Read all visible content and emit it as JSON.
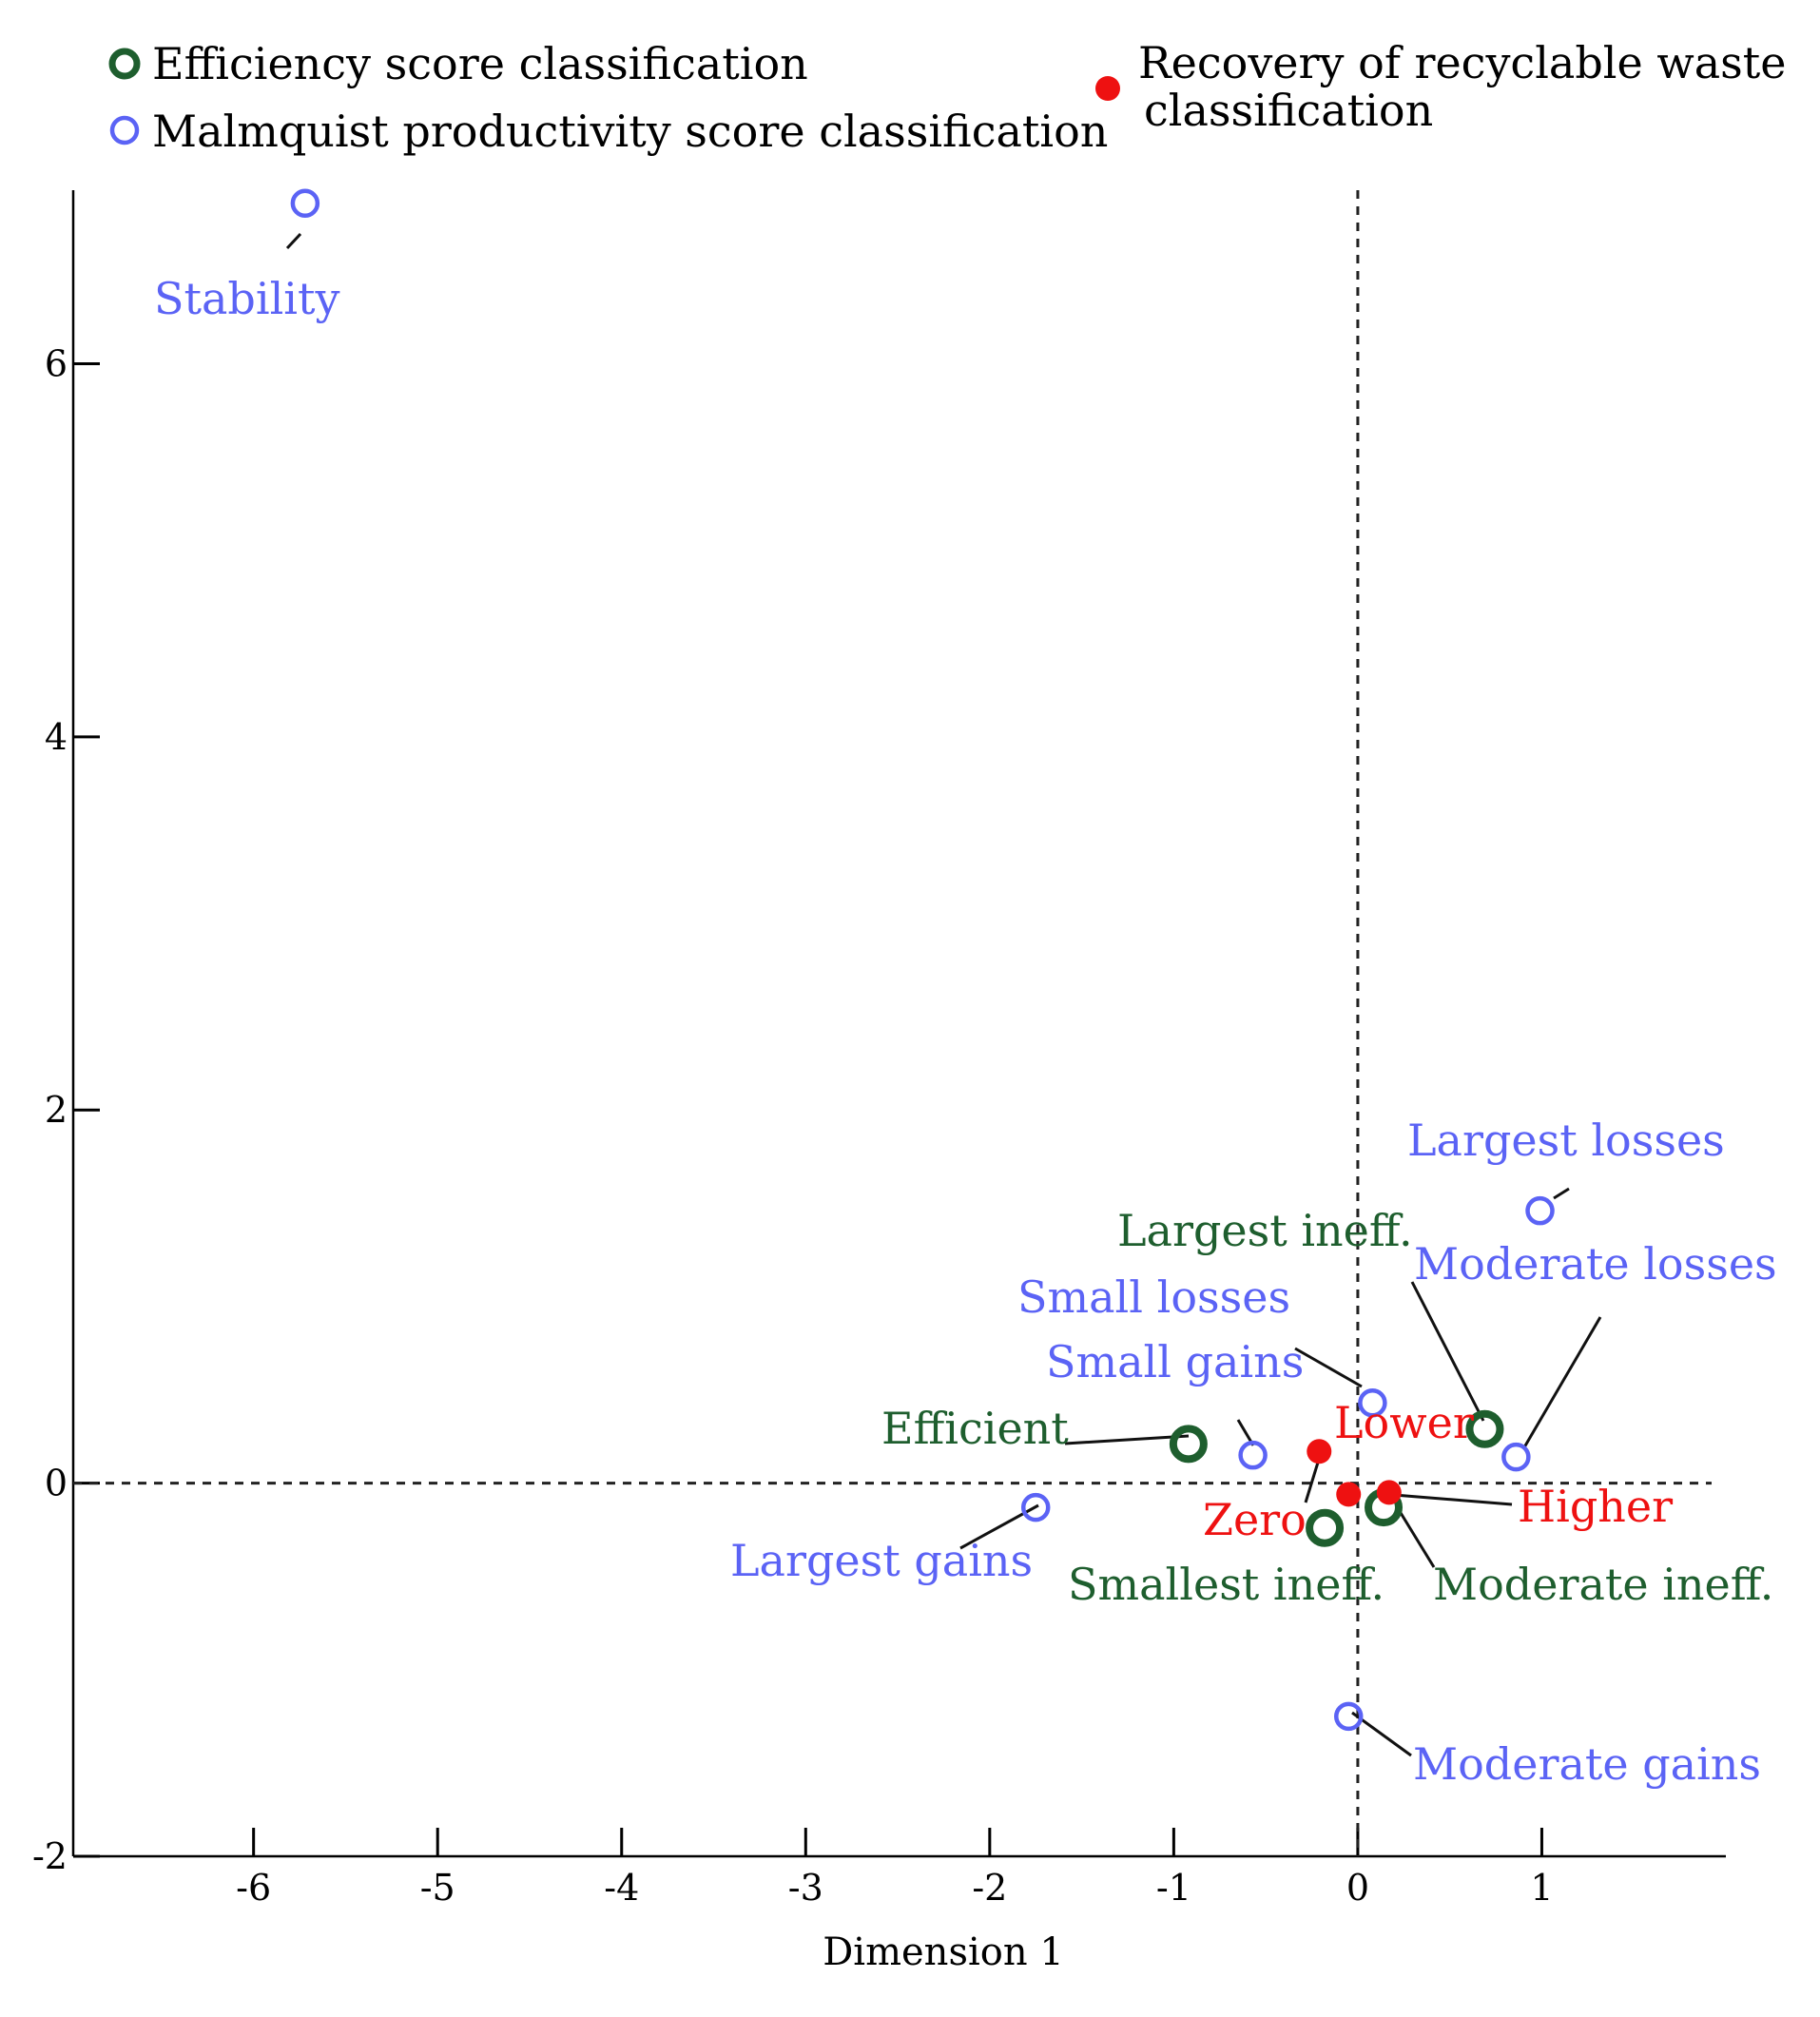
{
  "chart_data": {
    "type": "scatter",
    "title": "",
    "xlabel": "Dimension 1",
    "ylabel": "",
    "xlim": [
      -6.98,
      2.0
    ],
    "ylim": [
      -2.0,
      7.0
    ],
    "x_ticks": [
      -6,
      -5,
      -4,
      -3,
      -2,
      -1,
      0,
      1
    ],
    "y_ticks": [
      -2,
      0,
      2,
      4,
      6
    ],
    "reference_lines": {
      "x": 0,
      "y": 0,
      "style": "dashed"
    },
    "grid": false,
    "legend_position": "top",
    "series": [
      {
        "name": "Efficiency score classification",
        "color": "#1e5e2e",
        "marker": "open-circle-thick",
        "points": [
          {
            "label": "Efficient",
            "x": -0.92,
            "y": 0.21
          },
          {
            "label": "Largest ineff.",
            "x": 0.69,
            "y": 0.29
          },
          {
            "label": "Smallest ineff.",
            "x": -0.18,
            "y": -0.24
          },
          {
            "label": "Moderate ineff.",
            "x": 0.14,
            "y": -0.13
          }
        ]
      },
      {
        "name": "Malmquist productivity score classification",
        "color": "#5b63f5",
        "marker": "open-circle",
        "points": [
          {
            "label": "Stability",
            "x": -5.72,
            "y": 6.86
          },
          {
            "label": "Largest losses",
            "x": 0.99,
            "y": 1.46
          },
          {
            "label": "Moderate losses",
            "x": 0.86,
            "y": 0.14
          },
          {
            "label": "Small losses",
            "x": 0.08,
            "y": 0.43
          },
          {
            "label": "Small gains",
            "x": -0.57,
            "y": 0.15
          },
          {
            "label": "Largest gains",
            "x": -1.75,
            "y": -0.13
          },
          {
            "label": "Moderate gains",
            "x": -0.05,
            "y": -1.25
          }
        ]
      },
      {
        "name": "Recovery of recyclable waste classification",
        "color": "#ee1111",
        "marker": "filled-circle",
        "points": [
          {
            "label": "Lower",
            "x": -0.21,
            "y": 0.17
          },
          {
            "label": "Zero",
            "x": -0.05,
            "y": -0.06
          },
          {
            "label": "Higher",
            "x": 0.17,
            "y": -0.05
          }
        ]
      }
    ]
  }
}
